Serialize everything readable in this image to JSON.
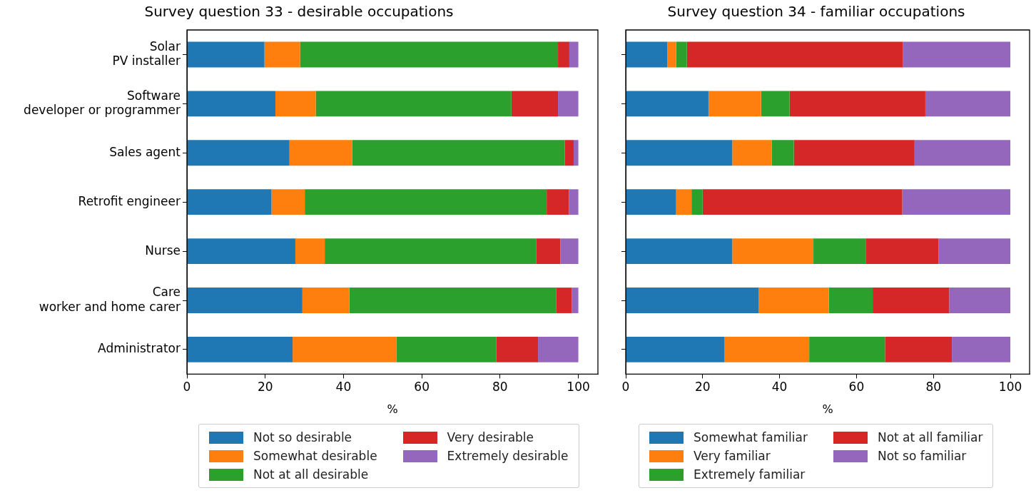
{
  "chart_data": [
    {
      "type": "bar",
      "orientation": "horizontal",
      "stacked": true,
      "title": "Survey question 33 - desirable occupations",
      "xlabel": "%",
      "categories": [
        "Solar\nPV installer",
        "Software\ndeveloper or programmer",
        "Sales agent",
        "Retrofit engineer",
        "Nurse",
        "Care\nworker and home carer",
        "Administrator"
      ],
      "series": [
        {
          "name": "Not so desirable",
          "color": "#1f77b4",
          "values": [
            19.8,
            22.6,
            26.2,
            21.6,
            27.7,
            29.5,
            27.0
          ]
        },
        {
          "name": "Somewhat desirable",
          "color": "#ff7f0e",
          "values": [
            9.1,
            10.3,
            16.0,
            8.5,
            7.5,
            12.0,
            26.5
          ]
        },
        {
          "name": "Not at all desirable",
          "color": "#2ca02c",
          "values": [
            65.9,
            50.0,
            54.3,
            61.8,
            54.0,
            52.8,
            25.5
          ]
        },
        {
          "name": "Very desirable",
          "color": "#d62728",
          "values": [
            2.9,
            11.9,
            2.3,
            5.7,
            6.2,
            4.0,
            10.7
          ]
        },
        {
          "name": "Extremely desirable",
          "color": "#9467bd",
          "values": [
            2.3,
            5.2,
            1.2,
            2.4,
            4.6,
            1.7,
            10.3
          ]
        }
      ],
      "xlim": [
        0,
        105
      ],
      "xticks": [
        0,
        20,
        40,
        60,
        80,
        100
      ],
      "grid": false,
      "legend": "bottom"
    },
    {
      "type": "bar",
      "orientation": "horizontal",
      "stacked": true,
      "title": "Survey question 34 - familiar occupations",
      "xlabel": "%",
      "categories": [
        null,
        null,
        null,
        null,
        null,
        null,
        null
      ],
      "series": [
        {
          "name": "Somewhat familiar",
          "color": "#1f77b4",
          "values": [
            10.8,
            21.5,
            27.7,
            13.1,
            27.7,
            34.6,
            25.7
          ]
        },
        {
          "name": "Very familiar",
          "color": "#ff7f0e",
          "values": [
            2.3,
            13.7,
            10.3,
            4.0,
            21.1,
            18.2,
            22.0
          ]
        },
        {
          "name": "Extremely familiar",
          "color": "#2ca02c",
          "values": [
            2.8,
            7.4,
            5.7,
            2.9,
            13.7,
            11.4,
            19.7
          ]
        },
        {
          "name": "Not at all familiar",
          "color": "#d62728",
          "values": [
            56.1,
            35.3,
            31.4,
            51.9,
            18.8,
            19.9,
            17.4
          ]
        },
        {
          "name": "Not so familiar",
          "color": "#9467bd",
          "values": [
            28.0,
            22.1,
            24.9,
            28.1,
            18.7,
            15.9,
            15.2
          ]
        }
      ],
      "xlim": [
        0,
        105
      ],
      "xticks": [
        0,
        20,
        40,
        60,
        80,
        100
      ],
      "grid": false,
      "legend": "bottom",
      "tick_labels": "x"
    }
  ]
}
